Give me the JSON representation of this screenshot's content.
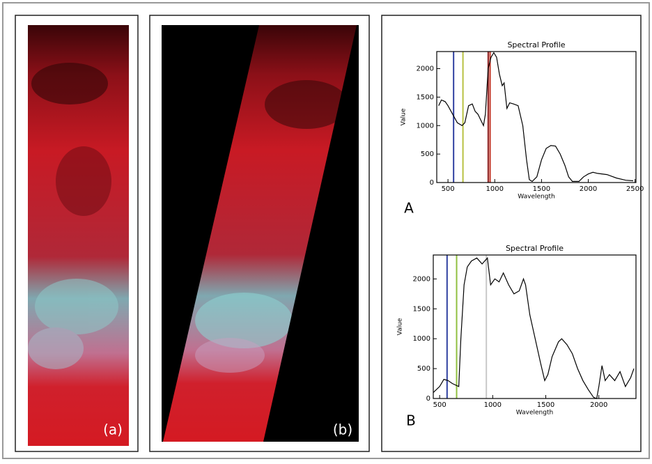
{
  "image_labels": [
    "(a)",
    "(b)"
  ],
  "chart_data": [
    {
      "type": "line",
      "panel_label": "A",
      "title": "Spectral Profile",
      "xlabel": "Wavelength",
      "ylabel": "Value",
      "xlim": [
        380,
        2510
      ],
      "ylim": [
        0,
        2300
      ],
      "xticks": [
        500,
        1000,
        1500,
        2000,
        2500
      ],
      "yticks": [
        0,
        500,
        1000,
        1500,
        2000
      ],
      "markers": [
        {
          "x": 560,
          "color": "#3040a0"
        },
        {
          "x": 660,
          "color": "#b8c040"
        },
        {
          "x": 930,
          "color": "#8b1a1a"
        },
        {
          "x": 950,
          "color": "#c03020"
        }
      ],
      "x": [
        400,
        430,
        470,
        500,
        550,
        600,
        650,
        680,
        720,
        760,
        790,
        820,
        850,
        880,
        900,
        930,
        960,
        990,
        1020,
        1050,
        1080,
        1100,
        1130,
        1160,
        1200,
        1250,
        1300,
        1340,
        1370,
        1400,
        1450,
        1500,
        1550,
        1600,
        1650,
        1700,
        1750,
        1790,
        1830,
        1900,
        1950,
        2000,
        2050,
        2100,
        2200,
        2300,
        2400,
        2480
      ],
      "series": [
        {
          "color": "#000000",
          "values": [
            1350,
            1450,
            1420,
            1350,
            1200,
            1050,
            1000,
            1050,
            1350,
            1380,
            1250,
            1200,
            1100,
            1000,
            1200,
            2000,
            2200,
            2280,
            2200,
            1900,
            1700,
            1750,
            1300,
            1400,
            1380,
            1350,
            1000,
            400,
            50,
            20,
            100,
            400,
            600,
            650,
            640,
            500,
            300,
            100,
            20,
            20,
            100,
            150,
            180,
            160,
            140,
            80,
            40,
            30
          ]
        }
      ]
    },
    {
      "type": "line",
      "panel_label": "B",
      "title": "Spectral Profile",
      "xlabel": "Wavelength",
      "ylabel": "Value",
      "xlim": [
        440,
        2350
      ],
      "ylim": [
        0,
        2400
      ],
      "xticks": [
        500,
        1000,
        1500,
        2000
      ],
      "yticks": [
        0,
        500,
        1000,
        1500,
        2000
      ],
      "markers": [
        {
          "x": 570,
          "color": "#3040a0"
        },
        {
          "x": 660,
          "color": "#90c040"
        },
        {
          "x": 940,
          "color": "#c8c8c8"
        }
      ],
      "x": [
        440,
        500,
        540,
        580,
        620,
        680,
        700,
        730,
        760,
        800,
        850,
        900,
        950,
        980,
        1020,
        1060,
        1100,
        1150,
        1200,
        1250,
        1290,
        1310,
        1350,
        1400,
        1450,
        1490,
        1520,
        1560,
        1620,
        1650,
        1700,
        1750,
        1800,
        1850,
        1900,
        1950,
        1980,
        2000,
        2030,
        2060,
        2100,
        2150,
        2200,
        2250,
        2300,
        2330
      ],
      "series": [
        {
          "color": "#000000",
          "values": [
            100,
            200,
            320,
            300,
            250,
            200,
            1000,
            1900,
            2200,
            2300,
            2350,
            2250,
            2350,
            1900,
            2000,
            1950,
            2100,
            1900,
            1750,
            1800,
            2000,
            1900,
            1400,
            1000,
            600,
            300,
            400,
            700,
            950,
            1000,
            900,
            750,
            500,
            300,
            150,
            20,
            0,
            200,
            550,
            300,
            400,
            300,
            450,
            200,
            350,
            500
          ]
        }
      ]
    }
  ]
}
